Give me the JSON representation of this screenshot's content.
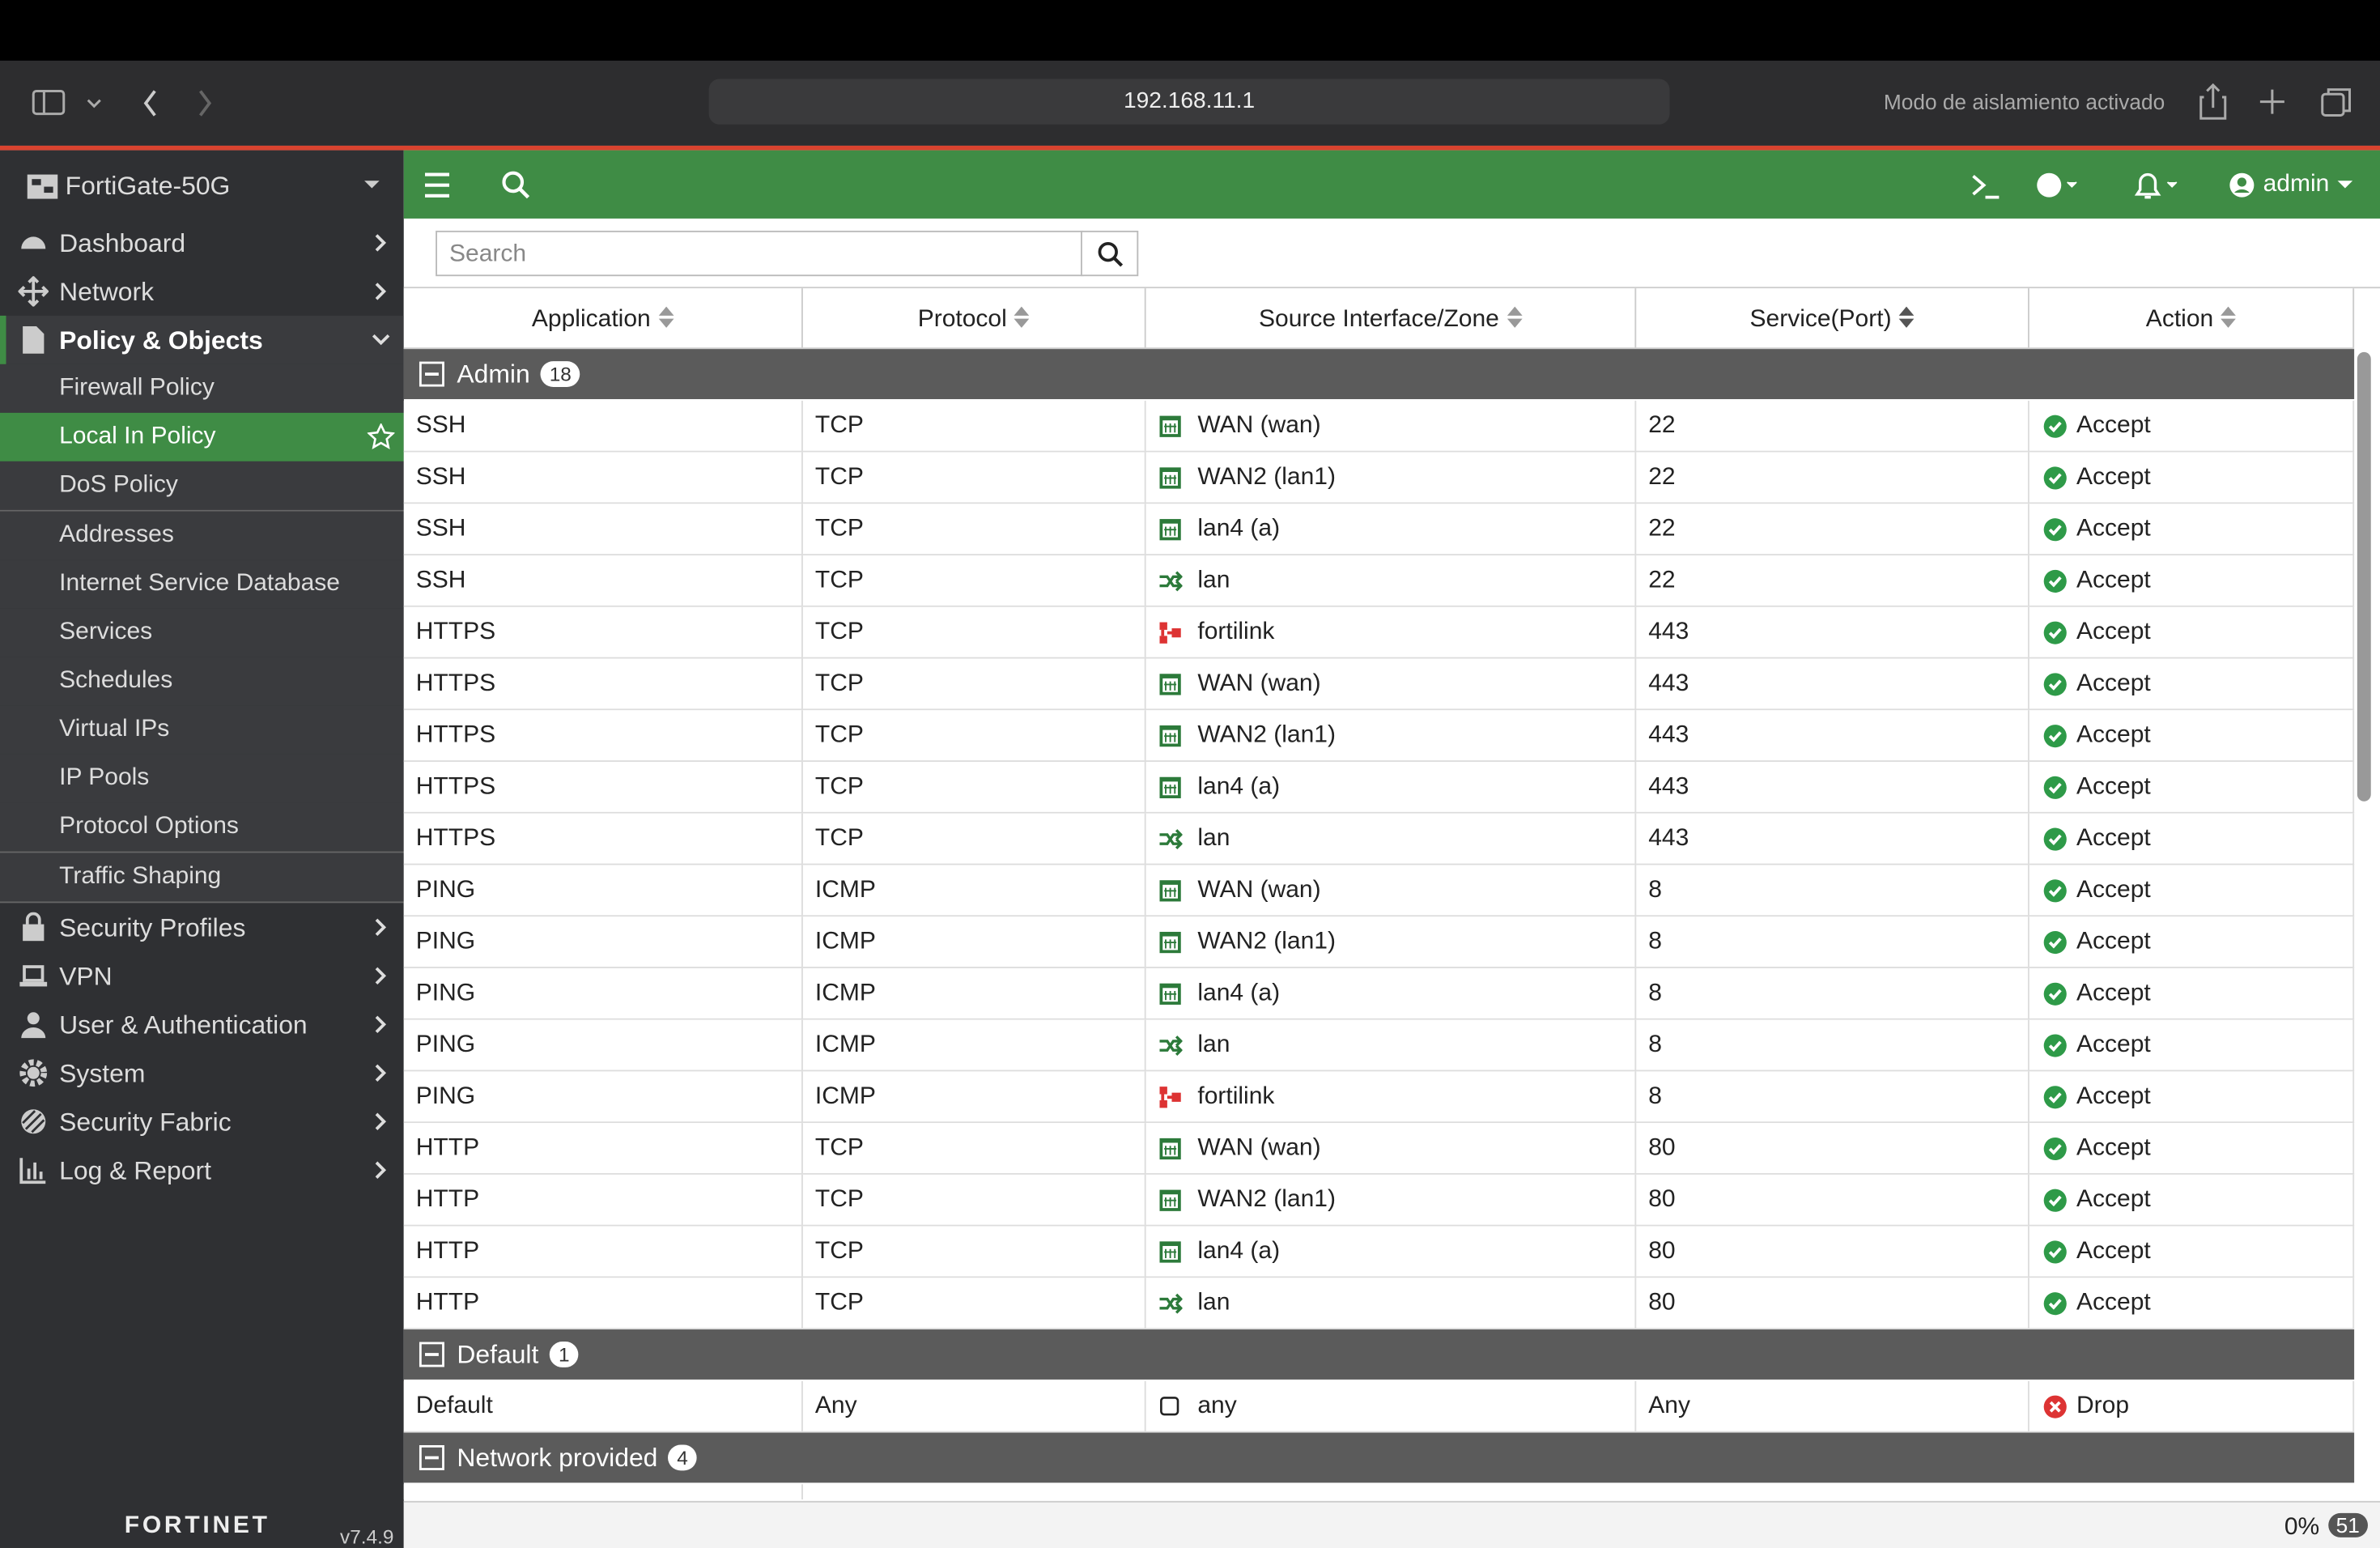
{
  "browser": {
    "url": "192.168.11.1",
    "status": "Modo de aislamiento activado"
  },
  "sidebar": {
    "device": "FortiGate-50G",
    "menu": [
      {
        "label": "Dashboard",
        "icon": "gauge"
      },
      {
        "label": "Network",
        "icon": "move"
      },
      {
        "label": "Policy & Objects",
        "icon": "doc",
        "open": true,
        "children": [
          [
            {
              "label": "Firewall Policy"
            },
            {
              "label": "Local In Policy",
              "selected": true
            },
            {
              "label": "DoS Policy"
            }
          ],
          [
            {
              "label": "Addresses"
            },
            {
              "label": "Internet Service Database"
            },
            {
              "label": "Services"
            },
            {
              "label": "Schedules"
            },
            {
              "label": "Virtual IPs"
            },
            {
              "label": "IP Pools"
            },
            {
              "label": "Protocol Options"
            }
          ],
          [
            {
              "label": "Traffic Shaping"
            }
          ]
        ]
      },
      {
        "label": "Security Profiles",
        "icon": "lock"
      },
      {
        "label": "VPN",
        "icon": "laptop"
      },
      {
        "label": "User & Authentication",
        "icon": "user"
      },
      {
        "label": "System",
        "icon": "gear"
      },
      {
        "label": "Security Fabric",
        "icon": "fabric"
      },
      {
        "label": "Log & Report",
        "icon": "chart"
      }
    ],
    "brand": "FORTINET",
    "version": "v7.4.9"
  },
  "topbar": {
    "user": "admin"
  },
  "search": {
    "placeholder": "Search"
  },
  "table": {
    "columns": [
      "Application",
      "Protocol",
      "Source Interface/Zone",
      "Service(Port)",
      "Action"
    ],
    "groups": [
      {
        "name": "Admin",
        "count": 18,
        "rows": [
          {
            "cells": [
              "SSH",
              "TCP",
              "WAN (wan)",
              22,
              "Accept"
            ],
            "iface_icon": "port",
            "action_icon": "accept"
          },
          {
            "cells": [
              "SSH",
              "TCP",
              "WAN2 (lan1)",
              22,
              "Accept"
            ],
            "iface_icon": "port",
            "action_icon": "accept"
          },
          {
            "cells": [
              "SSH",
              "TCP",
              "lan4 (a)",
              22,
              "Accept"
            ],
            "iface_icon": "port",
            "action_icon": "accept"
          },
          {
            "cells": [
              "SSH",
              "TCP",
              "lan",
              22,
              "Accept"
            ],
            "iface_icon": "switch",
            "action_icon": "accept"
          },
          {
            "cells": [
              "HTTPS",
              "TCP",
              "fortilink",
              443,
              "Accept"
            ],
            "iface_icon": "fortilink",
            "action_icon": "accept"
          },
          {
            "cells": [
              "HTTPS",
              "TCP",
              "WAN (wan)",
              443,
              "Accept"
            ],
            "iface_icon": "port",
            "action_icon": "accept"
          },
          {
            "cells": [
              "HTTPS",
              "TCP",
              "WAN2 (lan1)",
              443,
              "Accept"
            ],
            "iface_icon": "port",
            "action_icon": "accept"
          },
          {
            "cells": [
              "HTTPS",
              "TCP",
              "lan4 (a)",
              443,
              "Accept"
            ],
            "iface_icon": "port",
            "action_icon": "accept"
          },
          {
            "cells": [
              "HTTPS",
              "TCP",
              "lan",
              443,
              "Accept"
            ],
            "iface_icon": "switch",
            "action_icon": "accept"
          },
          {
            "cells": [
              "PING",
              "ICMP",
              "WAN (wan)",
              8,
              "Accept"
            ],
            "iface_icon": "port",
            "action_icon": "accept"
          },
          {
            "cells": [
              "PING",
              "ICMP",
              "WAN2 (lan1)",
              8,
              "Accept"
            ],
            "iface_icon": "port",
            "action_icon": "accept"
          },
          {
            "cells": [
              "PING",
              "ICMP",
              "lan4 (a)",
              8,
              "Accept"
            ],
            "iface_icon": "port",
            "action_icon": "accept"
          },
          {
            "cells": [
              "PING",
              "ICMP",
              "lan",
              8,
              "Accept"
            ],
            "iface_icon": "switch",
            "action_icon": "accept"
          },
          {
            "cells": [
              "PING",
              "ICMP",
              "fortilink",
              8,
              "Accept"
            ],
            "iface_icon": "fortilink",
            "action_icon": "accept"
          },
          {
            "cells": [
              "HTTP",
              "TCP",
              "WAN (wan)",
              80,
              "Accept"
            ],
            "iface_icon": "port",
            "action_icon": "accept"
          },
          {
            "cells": [
              "HTTP",
              "TCP",
              "WAN2 (lan1)",
              80,
              "Accept"
            ],
            "iface_icon": "port",
            "action_icon": "accept"
          },
          {
            "cells": [
              "HTTP",
              "TCP",
              "lan4 (a)",
              80,
              "Accept"
            ],
            "iface_icon": "port",
            "action_icon": "accept"
          },
          {
            "cells": [
              "HTTP",
              "TCP",
              "lan",
              80,
              "Accept"
            ],
            "iface_icon": "switch",
            "action_icon": "accept"
          }
        ]
      },
      {
        "name": "Default",
        "count": 1,
        "rows": [
          {
            "cells": [
              "Default",
              "Any",
              "any",
              "Any",
              "Drop"
            ],
            "iface_icon": "any",
            "action_icon": "drop"
          }
        ]
      },
      {
        "name": "Network provided",
        "count": 4,
        "rows": []
      }
    ]
  },
  "footer": {
    "progress": "0%",
    "count": 51
  }
}
